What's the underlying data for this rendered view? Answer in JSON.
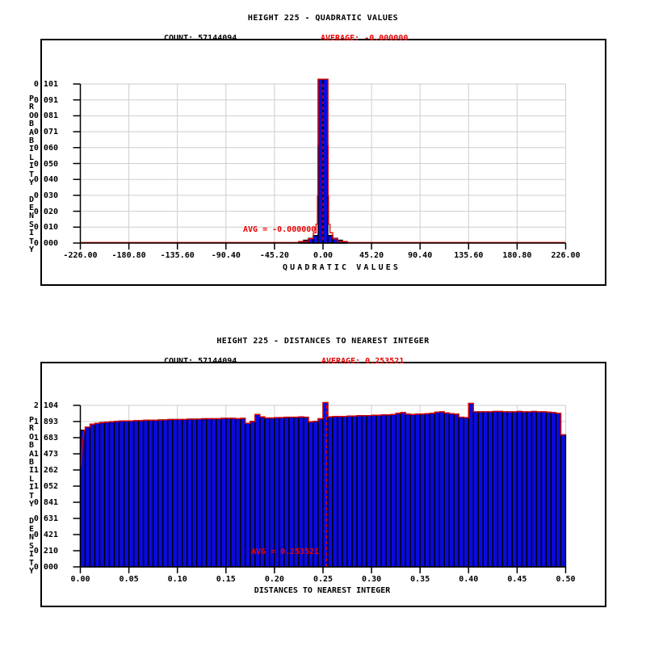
{
  "page": {
    "background": "#ffffff"
  },
  "colors": {
    "bar_fill": "#0a0ae0",
    "bar_stroke": "#000000",
    "curve_red": "#e80000",
    "grid": "#cdcdcd",
    "axis": "#000000",
    "text": "#000000"
  },
  "chart_data": [
    {
      "type": "bar",
      "title": "HEIGHT 225 - QUADRATIC VALUES",
      "count_text": "COUNT: 57144094",
      "average_text": "AVERAGE: -0.000000",
      "avg_annotation": "AVG = -0.000000",
      "avg_value": 0,
      "xlabel": "QUADRATIC VALUES",
      "ylabel": "PROBABILITY DENSITY",
      "xlim": [
        -226,
        226
      ],
      "ylim": [
        0,
        0.101
      ],
      "grid": true,
      "x_tick_labels": [
        "-226.00",
        "-180.80",
        "-135.60",
        "-90.40",
        "-45.20",
        "0.00",
        "45.20",
        "90.40",
        "135.60",
        "180.80",
        "226.00"
      ],
      "y_tick_labels": [
        "0.101",
        "0.091",
        "0.081",
        "0.071",
        "0.060",
        "0.050",
        "0.040",
        "0.030",
        "0.020",
        "0.010",
        "0.000"
      ],
      "bins": {
        "start": -22.6,
        "width": 4.52,
        "heights": [
          0.0008,
          0.0018,
          0.003,
          0.0048,
          0.104,
          0.104,
          0.0048,
          0.003,
          0.0018,
          0.0008
        ]
      },
      "red_curve": [
        [
          -226,
          0.0004
        ],
        [
          -22.6,
          0.0004
        ],
        [
          -22.6,
          0.001
        ],
        [
          -13.56,
          0.001
        ],
        [
          -13.56,
          0.0028
        ],
        [
          -9.04,
          0.0028
        ],
        [
          -9.04,
          0.0065
        ],
        [
          -6.5,
          0.0065
        ],
        [
          -6.5,
          0.012
        ],
        [
          -5.2,
          0.012
        ],
        [
          -5.2,
          0.03
        ],
        [
          -4.8,
          0.03
        ],
        [
          -4.8,
          0.062
        ],
        [
          -4.52,
          0.062
        ],
        [
          -4.52,
          0.104
        ],
        [
          4.52,
          0.104
        ],
        [
          4.52,
          0.062
        ],
        [
          4.8,
          0.062
        ],
        [
          4.8,
          0.03
        ],
        [
          5.2,
          0.03
        ],
        [
          5.2,
          0.012
        ],
        [
          6.5,
          0.012
        ],
        [
          6.5,
          0.0065
        ],
        [
          9.04,
          0.0065
        ],
        [
          9.04,
          0.0028
        ],
        [
          13.56,
          0.0028
        ],
        [
          13.56,
          0.001
        ],
        [
          22.6,
          0.001
        ],
        [
          22.6,
          0.0004
        ],
        [
          226,
          0.0004
        ]
      ]
    },
    {
      "type": "bar",
      "title": "HEIGHT 225 - DISTANCES TO NEAREST INTEGER",
      "count_text": "COUNT: 57144094",
      "average_text": "AVERAGE: 0.253521",
      "avg_annotation": "AVG = 0.253521",
      "avg_value": 0.253521,
      "xlabel": "DISTANCES TO NEAREST INTEGER",
      "ylabel": "PROBABILITY DENSITY",
      "xlim": [
        0,
        0.5
      ],
      "ylim": [
        0,
        2.104
      ],
      "grid": true,
      "x_tick_labels": [
        "0.00",
        "0.05",
        "0.10",
        "0.15",
        "0.20",
        "0.25",
        "0.30",
        "0.35",
        "0.40",
        "0.45",
        "0.50"
      ],
      "y_tick_labels": [
        "2.104",
        "1.893",
        "1.683",
        "1.473",
        "1.262",
        "1.052",
        "0.841",
        "0.631",
        "0.421",
        "0.210",
        "0.000"
      ],
      "bins": {
        "start": 0,
        "width": 0.005,
        "heights": [
          1.78,
          1.82,
          1.86,
          1.87,
          1.88,
          1.885,
          1.89,
          1.895,
          1.9,
          1.9,
          1.9,
          1.905,
          1.905,
          1.91,
          1.91,
          1.91,
          1.915,
          1.915,
          1.92,
          1.92,
          1.92,
          1.92,
          1.925,
          1.925,
          1.925,
          1.93,
          1.93,
          1.93,
          1.93,
          1.935,
          1.935,
          1.935,
          1.93,
          1.935,
          1.87,
          1.895,
          1.985,
          1.955,
          1.94,
          1.94,
          1.945,
          1.945,
          1.95,
          1.95,
          1.95,
          1.955,
          1.95,
          1.89,
          1.895,
          1.93,
          2.14,
          1.955,
          1.96,
          1.96,
          1.96,
          1.965,
          1.965,
          1.97,
          1.97,
          1.97,
          1.975,
          1.975,
          1.98,
          1.98,
          1.985,
          2.0,
          2.01,
          1.99,
          1.985,
          1.99,
          1.99,
          1.995,
          2.0,
          2.015,
          2.02,
          2.005,
          1.995,
          1.99,
          1.95,
          1.945,
          2.13,
          2.02,
          2.02,
          2.02,
          2.02,
          2.025,
          2.025,
          2.02,
          2.02,
          2.02,
          2.025,
          2.02,
          2.02,
          2.025,
          2.02,
          2.02,
          2.015,
          2.01,
          2.0,
          1.72
        ]
      },
      "red_curve_left_ramp": [
        [
          0.0005,
          1.3
        ],
        [
          0.002,
          1.6
        ],
        [
          0.0035,
          1.72
        ],
        [
          0.004,
          1.78
        ]
      ]
    }
  ]
}
